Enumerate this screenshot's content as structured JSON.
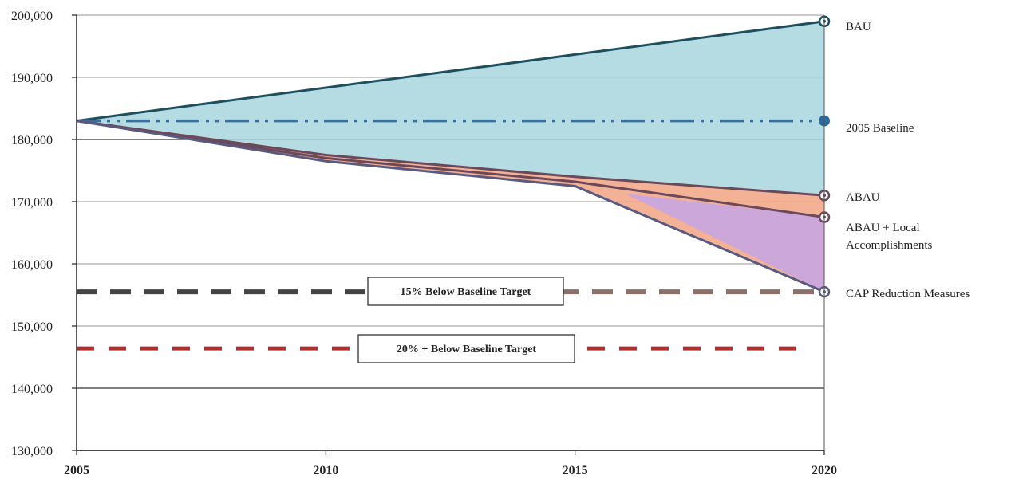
{
  "chart_data": {
    "type": "area",
    "x_range": [
      2005,
      2020
    ],
    "ylim": [
      130000,
      200000
    ],
    "x_ticks": [
      "2005",
      "2010",
      "2015",
      "2020"
    ],
    "y_ticks": [
      "130,000",
      "140,000",
      "150,000",
      "160,000",
      "170,000",
      "180,000",
      "190,000",
      "200,000"
    ],
    "grid": true,
    "series": [
      {
        "name": "BAU",
        "x": [
          2005,
          2020
        ],
        "y": [
          183000,
          199000
        ],
        "color": "#1d4f5e",
        "style": "solid",
        "marker": "ring"
      },
      {
        "name": "2005 Baseline",
        "x": [
          2005,
          2020
        ],
        "y": [
          183000,
          183000
        ],
        "color": "#3a6f96",
        "style": "dash-dot-dot",
        "marker": "dot"
      },
      {
        "name": "ABAU",
        "x": [
          2005,
          2010,
          2015,
          2020
        ],
        "y": [
          183000,
          177500,
          174000,
          171000
        ],
        "color": "#6a4a5a",
        "style": "solid",
        "marker": "ring"
      },
      {
        "name_lines": [
          "ABAU + Local",
          "Accomplishments"
        ],
        "x": [
          2005,
          2010,
          2015,
          2020
        ],
        "y": [
          183000,
          177000,
          173200,
          167500
        ],
        "color": "#6a4a5a",
        "style": "solid",
        "marker": "ring"
      },
      {
        "name": "CAP Reduction Measures",
        "x": [
          2005,
          2010,
          2015,
          2020
        ],
        "y": [
          183000,
          176500,
          172500,
          155500
        ],
        "color": "#5a5a80",
        "style": "solid",
        "marker": "ring"
      }
    ],
    "targets": [
      {
        "label": "15% Below Baseline Target",
        "y": 155500,
        "color": "#444444",
        "color_end": "#8c6f66"
      },
      {
        "label": "20% + Below Baseline Target",
        "y": 146400,
        "color": "#b03030"
      }
    ],
    "fills": {
      "bau_band": "#a9d6de",
      "abau_band": "#f2a98a",
      "cap_band": "#c8a6e0"
    }
  }
}
